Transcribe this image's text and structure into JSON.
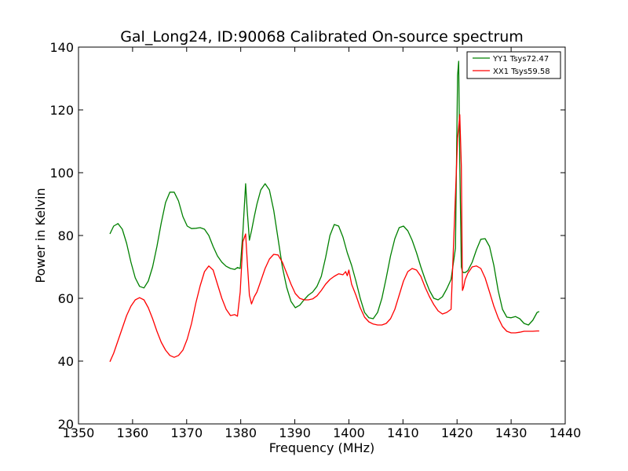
{
  "chart_data": {
    "type": "line",
    "title": "Gal_Long24, ID:90068 Calibrated On-source spectrum",
    "xlabel": "Frequency (MHz)",
    "ylabel": "Power in Kelvin",
    "xlim": [
      1350,
      1440
    ],
    "ylim": [
      20,
      140
    ],
    "xticks": [
      1350,
      1360,
      1370,
      1380,
      1390,
      1400,
      1410,
      1420,
      1430,
      1440
    ],
    "yticks": [
      20,
      40,
      60,
      80,
      100,
      120,
      140
    ],
    "grid": false,
    "legend_position": "top-right",
    "series": [
      {
        "name": "YY1 Tsys72.47",
        "color": "#008000",
        "x": [
          1355.8,
          1356.5,
          1357.3,
          1358.1,
          1358.9,
          1359.7,
          1360.5,
          1361.3,
          1362.1,
          1362.9,
          1363.7,
          1364.5,
          1365.3,
          1366.1,
          1366.9,
          1367.7,
          1368.5,
          1369.3,
          1370.1,
          1370.9,
          1371.7,
          1372.5,
          1373.3,
          1374.1,
          1374.9,
          1375.7,
          1376.5,
          1377.3,
          1378.1,
          1378.9,
          1379.4,
          1379.9,
          1380.4,
          1380.9,
          1381.2,
          1381.6,
          1382.0,
          1382.5,
          1383.0,
          1383.7,
          1384.5,
          1385.3,
          1386.1,
          1386.9,
          1387.7,
          1388.5,
          1389.3,
          1390.1,
          1390.9,
          1391.7,
          1392.5,
          1393.3,
          1394.1,
          1394.9,
          1395.7,
          1396.5,
          1397.3,
          1398.1,
          1398.9,
          1399.7,
          1400.5,
          1401.3,
          1402.1,
          1402.9,
          1403.7,
          1404.5,
          1405.3,
          1406.1,
          1406.9,
          1407.7,
          1408.5,
          1409.3,
          1410.1,
          1410.9,
          1411.7,
          1412.5,
          1413.3,
          1414.1,
          1414.9,
          1415.7,
          1416.5,
          1417.3,
          1418.1,
          1418.9,
          1419.7,
          1420.1,
          1420.3,
          1420.5,
          1420.8,
          1421.0,
          1421.2,
          1421.5,
          1422.0,
          1422.8,
          1423.6,
          1424.4,
          1425.2,
          1426.0,
          1426.8,
          1427.6,
          1428.4,
          1429.2,
          1430.0,
          1430.8,
          1431.6,
          1432.4,
          1433.2,
          1434.0,
          1434.8,
          1435.2
        ],
        "values": [
          80.5,
          83.0,
          83.8,
          82.0,
          77.5,
          71.5,
          66.5,
          63.8,
          63.3,
          65.5,
          70.0,
          76.5,
          84.0,
          90.5,
          93.8,
          93.8,
          91.0,
          86.0,
          83.0,
          82.2,
          82.3,
          82.5,
          82.0,
          80.0,
          76.5,
          73.5,
          71.5,
          70.2,
          69.5,
          69.2,
          69.8,
          69.5,
          81.0,
          96.5,
          88.0,
          78.5,
          81.5,
          86.0,
          90.0,
          94.5,
          96.5,
          94.5,
          88.0,
          79.0,
          70.0,
          63.5,
          59.0,
          57.0,
          57.8,
          59.5,
          61.0,
          62.0,
          63.8,
          67.0,
          73.0,
          80.0,
          83.5,
          83.0,
          79.5,
          74.5,
          70.5,
          65.5,
          60.0,
          55.5,
          53.8,
          53.5,
          55.5,
          60.0,
          66.5,
          73.5,
          79.0,
          82.5,
          83.0,
          81.5,
          78.5,
          74.5,
          70.0,
          66.0,
          62.5,
          60.0,
          59.5,
          60.5,
          63.0,
          66.0,
          76.0,
          131.0,
          135.5,
          103.0,
          70.0,
          68.5,
          68.2,
          68.2,
          68.8,
          71.5,
          75.5,
          78.8,
          79.0,
          76.5,
          70.5,
          62.5,
          56.5,
          54.0,
          53.8,
          54.2,
          53.5,
          52.0,
          51.5,
          53.0,
          55.5,
          55.8
        ]
      },
      {
        "name": "XX1 Tsys59.58",
        "color": "#ff0000",
        "x": [
          1355.8,
          1356.5,
          1357.3,
          1358.1,
          1358.9,
          1359.7,
          1360.5,
          1361.3,
          1362.1,
          1362.9,
          1363.7,
          1364.5,
          1365.3,
          1366.1,
          1366.9,
          1367.7,
          1368.5,
          1369.3,
          1370.1,
          1370.9,
          1371.7,
          1372.5,
          1373.3,
          1374.1,
          1374.9,
          1375.7,
          1376.5,
          1377.3,
          1378.1,
          1378.9,
          1379.4,
          1379.9,
          1380.4,
          1380.9,
          1381.2,
          1381.6,
          1382.0,
          1382.5,
          1383.0,
          1383.7,
          1384.5,
          1385.3,
          1386.1,
          1386.9,
          1387.7,
          1388.5,
          1389.3,
          1390.1,
          1390.9,
          1391.7,
          1392.5,
          1393.3,
          1394.1,
          1394.9,
          1395.7,
          1396.5,
          1397.3,
          1398.1,
          1398.9,
          1399.4,
          1399.7,
          1400.0,
          1400.5,
          1401.3,
          1402.1,
          1402.9,
          1403.7,
          1404.5,
          1405.3,
          1406.1,
          1406.9,
          1407.7,
          1408.5,
          1409.3,
          1410.1,
          1410.9,
          1411.7,
          1412.5,
          1413.3,
          1414.1,
          1414.9,
          1415.7,
          1416.5,
          1417.3,
          1418.1,
          1418.9,
          1419.7,
          1420.1,
          1420.3,
          1420.5,
          1420.8,
          1421.0,
          1421.2,
          1421.5,
          1422.0,
          1422.8,
          1423.6,
          1424.4,
          1425.2,
          1426.0,
          1426.8,
          1427.6,
          1428.4,
          1429.2,
          1430.0,
          1430.8,
          1431.6,
          1432.4,
          1433.2,
          1434.0,
          1434.8,
          1435.2
        ],
        "values": [
          39.8,
          42.5,
          46.5,
          50.5,
          54.5,
          57.5,
          59.5,
          60.2,
          59.5,
          57.0,
          53.5,
          49.5,
          46.0,
          43.5,
          41.8,
          41.2,
          41.8,
          43.5,
          47.0,
          52.0,
          58.5,
          64.0,
          68.5,
          70.3,
          69.0,
          64.5,
          60.0,
          56.5,
          54.5,
          54.8,
          54.3,
          62.0,
          78.0,
          80.5,
          72.0,
          61.0,
          58.2,
          60.5,
          62.0,
          65.5,
          69.5,
          72.5,
          74.0,
          73.8,
          71.5,
          68.0,
          64.5,
          61.5,
          60.0,
          59.5,
          59.5,
          59.8,
          60.8,
          62.5,
          64.5,
          66.0,
          67.0,
          67.8,
          67.5,
          68.5,
          67.2,
          69.0,
          64.5,
          61.0,
          57.0,
          54.0,
          52.5,
          51.8,
          51.5,
          51.5,
          52.0,
          53.5,
          56.5,
          61.0,
          65.5,
          68.5,
          69.5,
          69.0,
          67.0,
          63.5,
          60.5,
          58.0,
          56.0,
          55.0,
          55.5,
          56.5,
          93.0,
          111.0,
          114.5,
          118.5,
          102.0,
          62.5,
          63.5,
          66.0,
          68.0,
          70.0,
          70.3,
          69.5,
          66.5,
          62.0,
          57.5,
          53.8,
          51.0,
          49.5,
          49.0,
          49.0,
          49.2,
          49.5,
          49.5,
          49.5,
          49.6,
          49.6
        ]
      }
    ]
  }
}
